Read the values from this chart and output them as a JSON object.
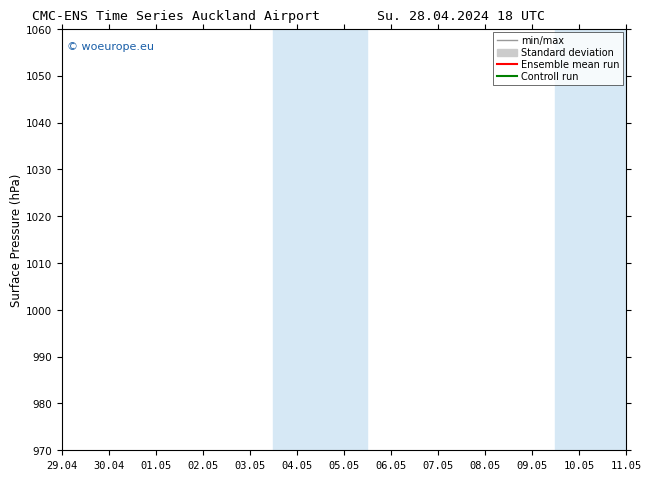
{
  "title_left": "CMC-ENS Time Series Auckland Airport",
  "title_right": "Su. 28.04.2024 18 UTC",
  "ylabel": "Surface Pressure (hPa)",
  "ylim": [
    970,
    1060
  ],
  "yticks": [
    970,
    980,
    990,
    1000,
    1010,
    1020,
    1030,
    1040,
    1050,
    1060
  ],
  "x_tick_labels": [
    "29.04",
    "30.04",
    "01.05",
    "02.05",
    "03.05",
    "04.05",
    "05.05",
    "06.05",
    "07.05",
    "08.05",
    "09.05",
    "10.05",
    "11.05"
  ],
  "x_tick_positions": [
    0,
    1,
    2,
    3,
    4,
    5,
    6,
    7,
    8,
    9,
    10,
    11,
    12
  ],
  "shaded_bands": [
    {
      "xmin": 4.5,
      "xmax": 6.5
    },
    {
      "xmin": 10.5,
      "xmax": 12
    }
  ],
  "shaded_color": "#d6e8f5",
  "watermark_text": "© woeurope.eu",
  "watermark_color": "#1a5fa8",
  "legend_items": [
    {
      "label": "min/max",
      "color": "#999999",
      "lw": 1.0,
      "ls": "-"
    },
    {
      "label": "Standard deviation",
      "color": "#cccccc",
      "lw": 5,
      "ls": "-"
    },
    {
      "label": "Ensemble mean run",
      "color": "red",
      "lw": 1.5,
      "ls": "-"
    },
    {
      "label": "Controll run",
      "color": "green",
      "lw": 1.5,
      "ls": "-"
    }
  ],
  "bg_color": "#ffffff",
  "title_fontsize": 9.5,
  "tick_fontsize": 7.5,
  "ylabel_fontsize": 8.5,
  "legend_fontsize": 7.0
}
